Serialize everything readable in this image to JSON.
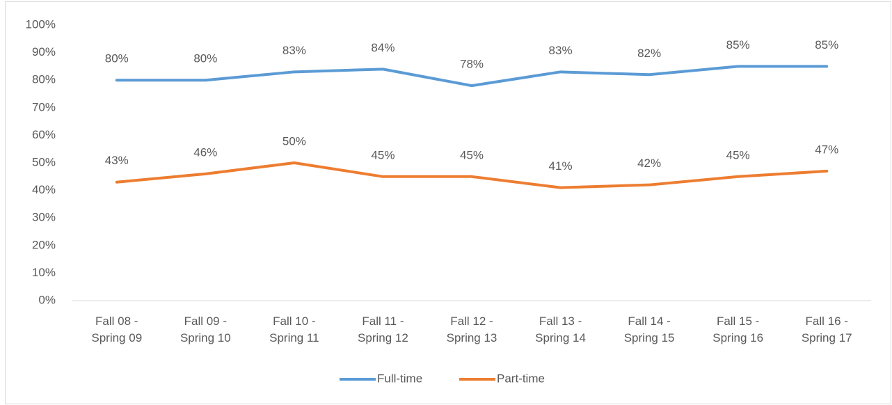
{
  "chart_data": {
    "type": "line",
    "categories": [
      "Fall 08 - Spring 09",
      "Fall 09 - Spring 10",
      "Fall 10 - Spring 11",
      "Fall 11 - Spring 12",
      "Fall 12 - Spring 13",
      "Fall 13 - Spring 14",
      "Fall 14 - Spring 15",
      "Fall 15 - Spring 16",
      "Fall 16 - Spring 17"
    ],
    "series": [
      {
        "name": "Full-time",
        "color": "#5b9bd5",
        "values": [
          80,
          80,
          83,
          84,
          78,
          83,
          82,
          85,
          85
        ],
        "value_labels": [
          "80%",
          "80%",
          "83%",
          "84%",
          "78%",
          "83%",
          "82%",
          "85%",
          "85%"
        ]
      },
      {
        "name": "Part-time",
        "color": "#ed7d31",
        "values": [
          43,
          46,
          50,
          45,
          45,
          41,
          42,
          45,
          47
        ],
        "value_labels": [
          "43%",
          "46%",
          "50%",
          "45%",
          "45%",
          "41%",
          "42%",
          "45%",
          "47%"
        ]
      }
    ],
    "ylim": [
      0,
      100
    ],
    "yticks": [
      {
        "value": 0,
        "label": "0%"
      },
      {
        "value": 10,
        "label": "10%"
      },
      {
        "value": 20,
        "label": "20%"
      },
      {
        "value": 30,
        "label": "30%"
      },
      {
        "value": 40,
        "label": "40%"
      },
      {
        "value": 50,
        "label": "50%"
      },
      {
        "value": 60,
        "label": "60%"
      },
      {
        "value": 70,
        "label": "70%"
      },
      {
        "value": 80,
        "label": "80%"
      },
      {
        "value": 90,
        "label": "90%"
      },
      {
        "value": 100,
        "label": "100%"
      }
    ],
    "grid": false,
    "legend": "bottom"
  }
}
